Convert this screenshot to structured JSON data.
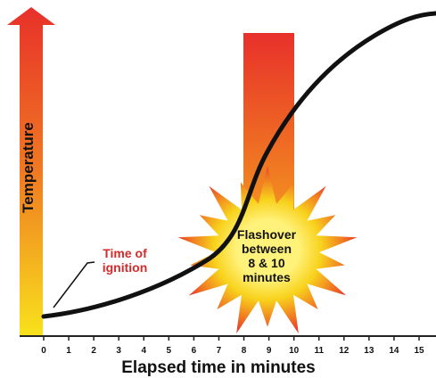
{
  "y_axis": {
    "title": "Temperature"
  },
  "x_axis": {
    "title": "Elapsed time in minutes",
    "ticks": [
      0,
      1,
      2,
      3,
      4,
      5,
      6,
      7,
      8,
      9,
      10,
      11,
      12,
      13,
      14,
      15
    ]
  },
  "annotation": {
    "lines": [
      "Time of",
      "ignition"
    ]
  },
  "callout": {
    "lines": [
      "Flashover",
      "between",
      "8 & 10",
      "minutes"
    ]
  }
}
